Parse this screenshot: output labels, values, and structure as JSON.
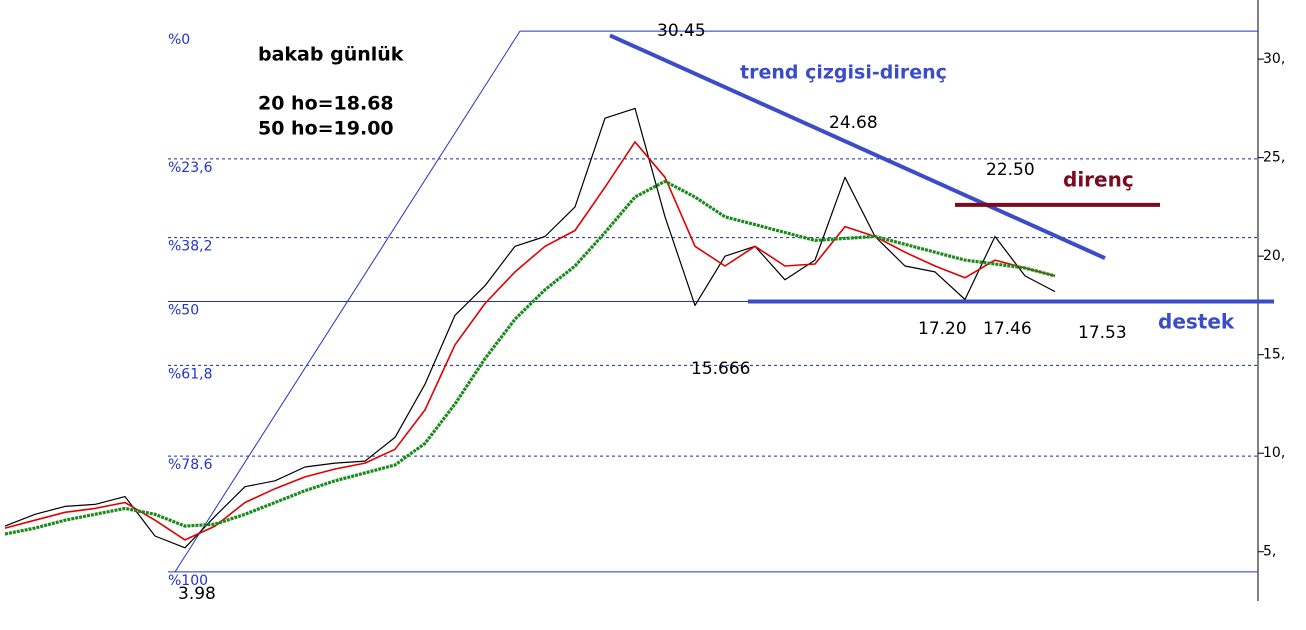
{
  "chart_data": {
    "type": "line",
    "title": "bakab günlük",
    "subtitle_lines": [
      "20 ho=18.68",
      "50 ho=19.00"
    ],
    "ylim": [
      2.5,
      33
    ],
    "yticks": [
      {
        "value": 5,
        "label": "5,"
      },
      {
        "value": 10,
        "label": "10,"
      },
      {
        "value": 15,
        "label": "15,"
      },
      {
        "value": 20,
        "label": "20,"
      },
      {
        "value": 25,
        "label": "25,"
      },
      {
        "value": 30,
        "label": "30,"
      }
    ],
    "series": [
      {
        "color": "#000000",
        "values": [
          6.3,
          6.9,
          7.3,
          7.4,
          7.8,
          5.8,
          5.2,
          6.8,
          8.3,
          8.6,
          9.3,
          9.5,
          9.6,
          10.8,
          13.5,
          17.0,
          18.5,
          20.5,
          21.0,
          22.5,
          27.0,
          27.5,
          22.0,
          17.5,
          20.0,
          20.5,
          18.8,
          19.8,
          24.0,
          21.0,
          19.5,
          19.2,
          17.8,
          21.0,
          19.0,
          18.2
        ]
      },
      {
        "color": "#e00000",
        "values": [
          6.2,
          6.6,
          7.0,
          7.2,
          7.5,
          6.6,
          5.6,
          6.3,
          7.5,
          8.2,
          8.8,
          9.2,
          9.5,
          10.2,
          12.2,
          15.5,
          17.6,
          19.2,
          20.5,
          21.3,
          23.5,
          25.8,
          24.0,
          20.5,
          19.5,
          20.5,
          19.5,
          19.6,
          21.5,
          21.0,
          20.2,
          19.5,
          18.9,
          19.8,
          19.4,
          19.0
        ]
      },
      {
        "color": "#1a8a1a",
        "values": [
          5.9,
          6.2,
          6.6,
          6.9,
          7.2,
          6.9,
          6.3,
          6.4,
          6.9,
          7.5,
          8.1,
          8.6,
          9.0,
          9.4,
          10.5,
          12.5,
          14.8,
          16.8,
          18.3,
          19.5,
          21.2,
          23.0,
          23.8,
          23.0,
          22.0,
          21.6,
          21.2,
          20.8,
          20.9,
          21.0,
          20.6,
          20.2,
          19.8,
          19.6,
          19.4,
          19.0
        ]
      }
    ],
    "fib_levels": [
      {
        "label": "%0",
        "value": 31.42,
        "style": "solid"
      },
      {
        "label": "%23,6",
        "value": 24.94,
        "style": "dashed"
      },
      {
        "label": "%38,2",
        "value": 20.94,
        "style": "dashed"
      },
      {
        "label": "%50",
        "value": 17.7,
        "style": "solid"
      },
      {
        "label": "%61,8",
        "value": 14.46,
        "style": "dashed"
      },
      {
        "label": "%78.6",
        "value": 9.85,
        "style": "dashed"
      },
      {
        "label": "%100",
        "value": 3.98,
        "style": "solid"
      }
    ],
    "lines": [
      {
        "label": "trend çizgisi-direnç",
        "color": "#3b4cc8",
        "values": [
          31.2,
          19.9
        ]
      },
      {
        "label": "direnç",
        "color": "#7a0a1e",
        "values": [
          22.6,
          22.6
        ]
      },
      {
        "label": "destek",
        "color": "#3b4cc8",
        "values": [
          17.7,
          17.7
        ]
      }
    ],
    "annotations": [
      "30.45",
      "24.68",
      "22.50",
      "15.666",
      "17.20",
      "17.46",
      "17.53",
      "3.98"
    ]
  }
}
